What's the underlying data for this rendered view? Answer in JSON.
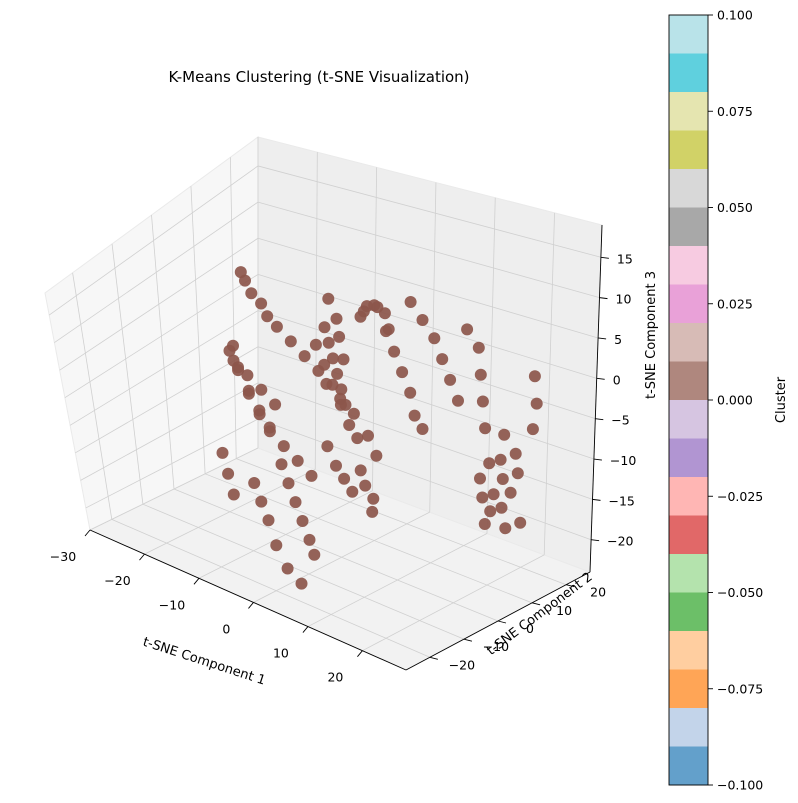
{
  "chart_data": {
    "type": "scatter",
    "projection": "3d",
    "title": "K-Means Clustering (t-SNE Visualization)",
    "xlabel": "t-SNE Component 1",
    "ylabel": "t-SNE Component 2",
    "zlabel": "t-SNE Component 3",
    "x_ticks": [
      "−30",
      "−20",
      "−10",
      "0",
      "10",
      "20"
    ],
    "y_ticks": [
      "−20",
      "−10",
      "0",
      "10",
      "20"
    ],
    "z_ticks": [
      "15",
      "10",
      "5",
      "0",
      "−5",
      "−10",
      "−15",
      "−20"
    ],
    "xlim": [
      -30,
      28
    ],
    "ylim": [
      -27,
      27
    ],
    "zlim": [
      -24,
      19
    ],
    "marker_color": "#8c564b",
    "grid": true,
    "series": [
      {
        "cluster": 0,
        "points": [
          [
            -26,
            16,
            5
          ],
          [
            -24,
            14,
            5
          ],
          [
            -21,
            11,
            5
          ],
          [
            -18,
            9,
            5
          ],
          [
            -15,
            6,
            5
          ],
          [
            -12,
            4,
            5
          ],
          [
            -9,
            3,
            4
          ],
          [
            -6,
            2,
            3
          ],
          [
            -3,
            1,
            2
          ],
          [
            -1,
            0,
            1
          ],
          [
            2,
            -1,
            0
          ],
          [
            5,
            -2,
            -1
          ],
          [
            8,
            -3,
            -3
          ],
          [
            10,
            -4,
            -5
          ],
          [
            -20,
            4,
            0
          ],
          [
            -18,
            2,
            -2
          ],
          [
            -15,
            0,
            -4
          ],
          [
            -12,
            -2,
            -6
          ],
          [
            -9,
            -4,
            -7
          ],
          [
            -6,
            -5,
            -8
          ],
          [
            -3,
            -6,
            -9
          ],
          [
            0,
            -7,
            -10
          ],
          [
            -22,
            6,
            -2
          ],
          [
            -20,
            5,
            -4
          ],
          [
            -17,
            3,
            -6
          ],
          [
            -14,
            1,
            -7
          ],
          [
            -11,
            -1,
            -8
          ],
          [
            -8,
            -3,
            -12
          ],
          [
            -5,
            -6,
            -13
          ],
          [
            -2,
            -9,
            -14
          ],
          [
            1,
            -12,
            -15
          ],
          [
            4,
            -15,
            -16
          ],
          [
            6,
            -17,
            -17
          ],
          [
            -10,
            -8,
            -14
          ],
          [
            -7,
            -11,
            -15
          ],
          [
            -4,
            -14,
            -16
          ],
          [
            -1,
            -17,
            -18
          ],
          [
            2,
            -19,
            -20
          ],
          [
            5,
            -20,
            -21
          ],
          [
            -14,
            -10,
            -10
          ],
          [
            -12,
            -12,
            -12
          ],
          [
            -10,
            -14,
            -14
          ],
          [
            0,
            8,
            8
          ],
          [
            2,
            6,
            10
          ],
          [
            4,
            4,
            12
          ],
          [
            6,
            3,
            13
          ],
          [
            8,
            1,
            14
          ],
          [
            10,
            0,
            14
          ],
          [
            12,
            -2,
            13
          ],
          [
            3,
            10,
            6
          ],
          [
            5,
            9,
            4
          ],
          [
            7,
            8,
            2
          ],
          [
            9,
            7,
            0
          ],
          [
            11,
            5,
            -2
          ],
          [
            13,
            4,
            -3
          ],
          [
            -5,
            6,
            6
          ],
          [
            -3,
            4,
            5
          ],
          [
            -1,
            2,
            4
          ],
          [
            1,
            0,
            3
          ],
          [
            3,
            -2,
            2
          ],
          [
            5,
            -4,
            1
          ],
          [
            -8,
            8,
            2
          ],
          [
            -6,
            7,
            0
          ],
          [
            -4,
            6,
            -2
          ],
          [
            -2,
            5,
            -4
          ],
          [
            0,
            4,
            -6
          ],
          [
            2,
            3,
            -7
          ],
          [
            6,
            12,
            10
          ],
          [
            8,
            12,
            8
          ],
          [
            10,
            12,
            6
          ],
          [
            12,
            11,
            4
          ],
          [
            14,
            10,
            2
          ],
          [
            16,
            9,
            0
          ],
          [
            15,
            13,
            8
          ],
          [
            17,
            13,
            6
          ],
          [
            18,
            12,
            3
          ],
          [
            19,
            11,
            0
          ],
          [
            20,
            10,
            -3
          ],
          [
            -2,
            3,
            12
          ],
          [
            0,
            2,
            10
          ],
          [
            1,
            1,
            8
          ],
          [
            3,
            -1,
            6
          ],
          [
            7,
            -4,
            -8
          ],
          [
            9,
            -6,
            -9
          ],
          [
            11,
            -7,
            -10
          ],
          [
            12,
            -9,
            -11
          ],
          [
            4,
            -8,
            -4
          ],
          [
            6,
            -9,
            -6
          ],
          [
            8,
            -10,
            -7
          ],
          [
            10,
            -11,
            -8
          ],
          [
            -16,
            -2,
            1
          ],
          [
            -13,
            -3,
            0
          ],
          [
            -10,
            -4,
            -1
          ],
          [
            -7,
            -5,
            -2
          ],
          [
            22,
            12,
            -4
          ],
          [
            24,
            12,
            -6
          ],
          [
            25,
            11,
            -8
          ],
          [
            25,
            9,
            -10
          ],
          [
            24,
            8,
            -12
          ],
          [
            22,
            8,
            -13
          ],
          [
            20,
            9,
            -12
          ],
          [
            19,
            10,
            -10
          ],
          [
            20,
            11,
            -8
          ],
          [
            22,
            11,
            -7
          ],
          [
            23,
            10,
            -9
          ],
          [
            22,
            9,
            -11
          ],
          [
            26,
            14,
            4
          ],
          [
            27,
            13,
            1
          ],
          [
            27,
            12,
            -2
          ],
          [
            26,
            10,
            -14
          ],
          [
            24,
            9,
            -15
          ],
          [
            21,
            8,
            -15
          ]
        ]
      }
    ],
    "colorbar": {
      "label": "Cluster",
      "ticks": [
        "0.100",
        "0.075",
        "0.050",
        "0.025",
        "0.000",
        "−0.025",
        "−0.050",
        "−0.075",
        "−0.100"
      ],
      "colors": [
        "#b9e3e9",
        "#5fd0de",
        "#e5e5b0",
        "#d1d267",
        "#d8d8d8",
        "#a8a8a8",
        "#f7cbe1",
        "#e9a1d8",
        "#d7bbb6",
        "#af877e",
        "#d6c5e1",
        "#b195d2",
        "#ffb6b4",
        "#e16868",
        "#b4e3ad",
        "#6cbf68",
        "#ffcea0",
        "#ffa556",
        "#c3d4ea",
        "#63a0cb"
      ]
    }
  }
}
